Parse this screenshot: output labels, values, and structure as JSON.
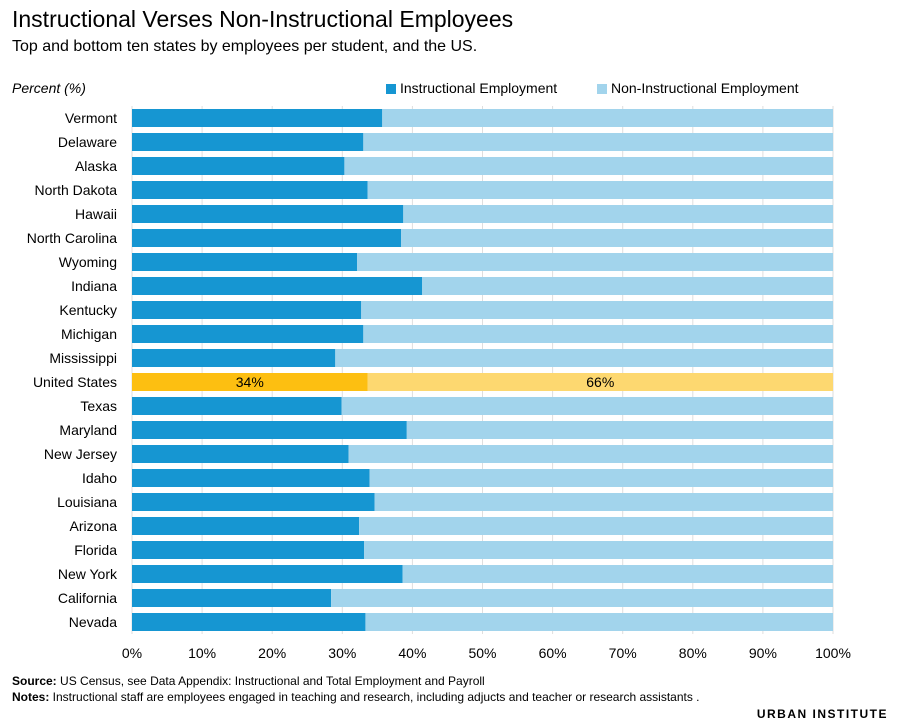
{
  "title": "Instructional Verses Non-Instructional Employees",
  "subtitle": "Top and bottom ten states by employees per student, and the US.",
  "chart_data": {
    "type": "bar",
    "orientation": "horizontal",
    "stacked": true,
    "title": "Instructional Verses Non-Instructional Employees",
    "ylabel": "Percent (%)",
    "xlim": [
      0,
      100
    ],
    "x_ticks": [
      "0%",
      "10%",
      "20%",
      "30%",
      "40%",
      "50%",
      "60%",
      "70%",
      "80%",
      "90%",
      "100%"
    ],
    "legend_position": "top-right",
    "categories": [
      "Vermont",
      "Delaware",
      "Alaska",
      "North Dakota",
      "Hawaii",
      "North Carolina",
      "Wyoming",
      "Indiana",
      "Kentucky",
      "Michigan",
      "Mississippi",
      "United States",
      "Texas",
      "Maryland",
      "New Jersey",
      "Idaho",
      "Louisiana",
      "Arizona",
      "Florida",
      "New York",
      "California",
      "Nevada"
    ],
    "series": [
      {
        "name": "Instructional Employment",
        "color": "#1696d2",
        "values": [
          35.7,
          33.0,
          30.3,
          33.6,
          38.7,
          38.4,
          32.1,
          41.4,
          32.7,
          33.0,
          29.0,
          33.6,
          29.9,
          39.2,
          30.9,
          33.9,
          34.6,
          32.4,
          33.1,
          38.6,
          28.4,
          33.3
        ]
      },
      {
        "name": "Non-Instructional Employment",
        "color": "#a2d4ec",
        "values": [
          64.3,
          67.0,
          69.7,
          66.4,
          61.3,
          61.6,
          67.9,
          58.6,
          67.3,
          67.0,
          71.0,
          66.4,
          70.1,
          60.8,
          69.1,
          66.1,
          65.4,
          67.6,
          66.9,
          61.4,
          71.6,
          66.7
        ]
      }
    ],
    "highlight": {
      "category": "United States",
      "colors": [
        "#fdbf11",
        "#fdd870"
      ],
      "labels": [
        "34%",
        "66%"
      ]
    }
  },
  "footer": {
    "source_label": "Source:",
    "source_text": " US Census, see Data Appendix: Instructional and Total Employment and Payroll",
    "notes_label": "Notes:",
    "notes_text": " Instructional staff are  employees engaged in teaching and research, including adjucts and teacher or research assistants ."
  },
  "logo_text": "URBAN INSTITUTE"
}
